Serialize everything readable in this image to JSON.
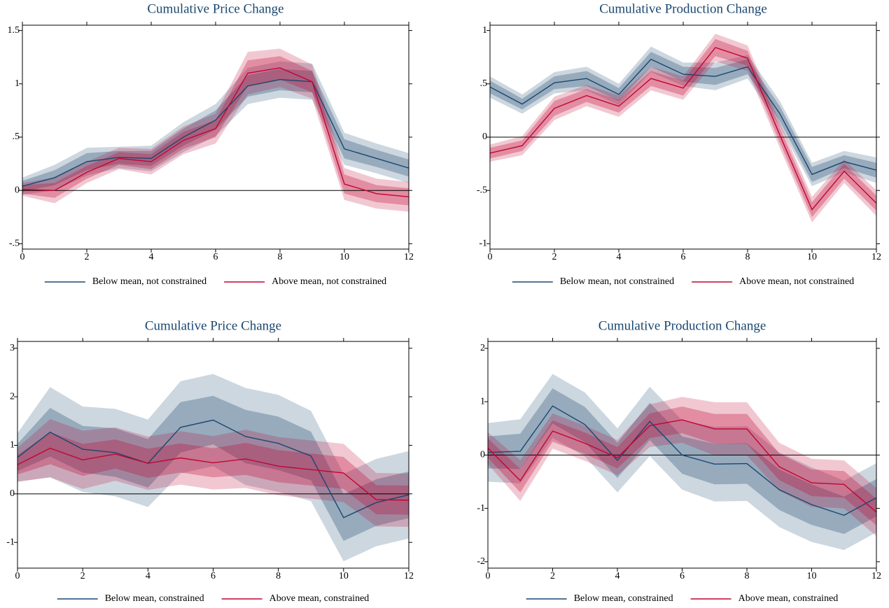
{
  "chart_data": [
    {
      "type": "line",
      "title": "Cumulative Price Change",
      "x": [
        0,
        1,
        2,
        3,
        4,
        5,
        6,
        7,
        8,
        9,
        10,
        11,
        12
      ],
      "xlim": [
        0,
        12
      ],
      "xticks": [
        0,
        2,
        4,
        6,
        8,
        10,
        12
      ],
      "ylim": [
        -0.55,
        1.55
      ],
      "yticks": [
        {
          "value": -0.5,
          "label": "-.5"
        },
        0,
        {
          "value": 0.5,
          "label": ".5"
        },
        1,
        1.5
      ],
      "reference_line": 0,
      "series": [
        {
          "name": "Below mean, not constrained",
          "color": "#1a476f",
          "values": [
            0.04,
            0.12,
            0.27,
            0.31,
            0.3,
            0.5,
            0.66,
            0.98,
            1.04,
            1.02,
            0.39,
            0.3,
            0.21
          ],
          "error_inner": [
            0.05,
            0.07,
            0.08,
            0.06,
            0.07,
            0.08,
            0.09,
            0.1,
            0.1,
            0.1,
            0.09,
            0.08,
            0.08
          ],
          "error_outer": [
            0.08,
            0.12,
            0.13,
            0.1,
            0.12,
            0.14,
            0.15,
            0.17,
            0.17,
            0.17,
            0.15,
            0.14,
            0.14
          ]
        },
        {
          "name": "Above mean, not constrained",
          "color": "#c10534",
          "values": [
            0.01,
            0.0,
            0.17,
            0.3,
            0.27,
            0.47,
            0.58,
            1.1,
            1.15,
            1.02,
            0.06,
            -0.03,
            -0.06
          ],
          "error_inner": [
            0.04,
            0.07,
            0.06,
            0.06,
            0.07,
            0.08,
            0.08,
            0.12,
            0.11,
            0.1,
            0.09,
            0.08,
            0.08
          ],
          "error_outer": [
            0.06,
            0.12,
            0.1,
            0.1,
            0.12,
            0.13,
            0.14,
            0.2,
            0.18,
            0.16,
            0.15,
            0.14,
            0.14
          ]
        }
      ]
    },
    {
      "type": "line",
      "title": "Cumulative Production Change",
      "x": [
        0,
        1,
        2,
        3,
        4,
        5,
        6,
        7,
        8,
        9,
        10,
        11,
        12
      ],
      "xlim": [
        0,
        12
      ],
      "xticks": [
        0,
        2,
        4,
        6,
        8,
        10,
        12
      ],
      "ylim": [
        -1.05,
        1.05
      ],
      "yticks": [
        -1,
        {
          "value": -0.5,
          "label": "-.5"
        },
        0,
        {
          "value": 0.5,
          "label": ".5"
        },
        1
      ],
      "reference_line": 0,
      "series": [
        {
          "name": "Below mean, not constrained",
          "color": "#1a476f",
          "values": [
            0.47,
            0.31,
            0.51,
            0.55,
            0.4,
            0.73,
            0.59,
            0.57,
            0.66,
            0.22,
            -0.35,
            -0.23,
            -0.31
          ],
          "error_inner": [
            0.06,
            0.05,
            0.06,
            0.07,
            0.06,
            0.07,
            0.07,
            0.08,
            0.07,
            0.07,
            0.07,
            0.06,
            0.07
          ],
          "error_outer": [
            0.1,
            0.09,
            0.1,
            0.11,
            0.1,
            0.12,
            0.11,
            0.13,
            0.11,
            0.12,
            0.11,
            0.1,
            0.12
          ]
        },
        {
          "name": "Above mean, not constrained",
          "color": "#c10534",
          "values": [
            -0.15,
            -0.08,
            0.27,
            0.39,
            0.29,
            0.55,
            0.46,
            0.84,
            0.74,
            0.02,
            -0.68,
            -0.32,
            -0.62
          ],
          "error_inner": [
            0.05,
            0.05,
            0.07,
            0.06,
            0.06,
            0.07,
            0.07,
            0.08,
            0.07,
            0.07,
            0.07,
            0.07,
            0.07
          ],
          "error_outer": [
            0.08,
            0.09,
            0.11,
            0.1,
            0.1,
            0.11,
            0.11,
            0.13,
            0.12,
            0.12,
            0.12,
            0.11,
            0.12
          ]
        }
      ]
    },
    {
      "type": "line",
      "title": "Cumulative Price Change",
      "x": [
        0,
        1,
        2,
        3,
        4,
        5,
        6,
        7,
        8,
        9,
        10,
        11,
        12
      ],
      "xlim": [
        0,
        12
      ],
      "xticks": [
        0,
        2,
        4,
        6,
        8,
        10,
        12
      ],
      "ylim": [
        -1.53,
        3.14
      ],
      "yticks": [
        -1,
        0,
        1,
        2,
        3
      ],
      "reference_line": 0,
      "series": [
        {
          "name": "Below mean, constrained",
          "color": "#1a476f",
          "values": [
            0.75,
            1.27,
            0.92,
            0.85,
            0.63,
            1.37,
            1.52,
            1.18,
            1.04,
            0.78,
            -0.49,
            -0.18,
            -0.02
          ],
          "error_inner": [
            0.28,
            0.5,
            0.48,
            0.5,
            0.5,
            0.52,
            0.5,
            0.55,
            0.55,
            0.5,
            0.48,
            0.48,
            0.48
          ],
          "error_outer": [
            0.5,
            0.93,
            0.88,
            0.9,
            0.9,
            0.95,
            0.95,
            1.0,
            1.0,
            0.93,
            0.9,
            0.9,
            0.9
          ]
        },
        {
          "name": "Above mean, constrained",
          "color": "#c10534",
          "values": [
            0.6,
            0.94,
            0.7,
            0.82,
            0.63,
            0.74,
            0.64,
            0.72,
            0.57,
            0.5,
            0.43,
            -0.12,
            -0.13
          ],
          "error_inner": [
            0.2,
            0.33,
            0.33,
            0.3,
            0.3,
            0.3,
            0.3,
            0.33,
            0.33,
            0.33,
            0.33,
            0.3,
            0.3
          ],
          "error_outer": [
            0.35,
            0.6,
            0.6,
            0.55,
            0.55,
            0.55,
            0.55,
            0.6,
            0.6,
            0.6,
            0.6,
            0.55,
            0.55
          ]
        }
      ]
    },
    {
      "type": "line",
      "title": "Cumulative Production Change",
      "x": [
        0,
        1,
        2,
        3,
        4,
        5,
        6,
        7,
        8,
        9,
        10,
        11,
        12
      ],
      "xlim": [
        0,
        12
      ],
      "xticks": [
        0,
        2,
        4,
        6,
        8,
        10,
        12
      ],
      "ylim": [
        -2.12,
        2.13
      ],
      "yticks": [
        -2,
        -1,
        0,
        1,
        2
      ],
      "reference_line": 0,
      "series": [
        {
          "name": "Below mean, constrained",
          "color": "#1a476f",
          "values": [
            0.05,
            0.07,
            0.92,
            0.57,
            -0.1,
            0.63,
            0.0,
            -0.17,
            -0.16,
            -0.65,
            -0.93,
            -1.13,
            -0.8
          ],
          "error_inner": [
            0.3,
            0.33,
            0.33,
            0.33,
            0.33,
            0.35,
            0.35,
            0.38,
            0.38,
            0.38,
            0.38,
            0.35,
            0.35
          ],
          "error_outer": [
            0.55,
            0.6,
            0.6,
            0.6,
            0.6,
            0.65,
            0.65,
            0.7,
            0.7,
            0.7,
            0.7,
            0.65,
            0.65
          ]
        },
        {
          "name": "Above mean, constrained",
          "color": "#c10534",
          "values": [
            0.13,
            -0.48,
            0.45,
            0.22,
            -0.05,
            0.55,
            0.66,
            0.49,
            0.49,
            -0.22,
            -0.52,
            -0.55,
            -1.07
          ],
          "error_inner": [
            0.18,
            0.22,
            0.2,
            0.2,
            0.2,
            0.23,
            0.25,
            0.28,
            0.28,
            0.25,
            0.25,
            0.25,
            0.25
          ],
          "error_outer": [
            0.3,
            0.38,
            0.33,
            0.33,
            0.33,
            0.4,
            0.43,
            0.5,
            0.5,
            0.45,
            0.45,
            0.45,
            0.45
          ]
        }
      ]
    }
  ]
}
